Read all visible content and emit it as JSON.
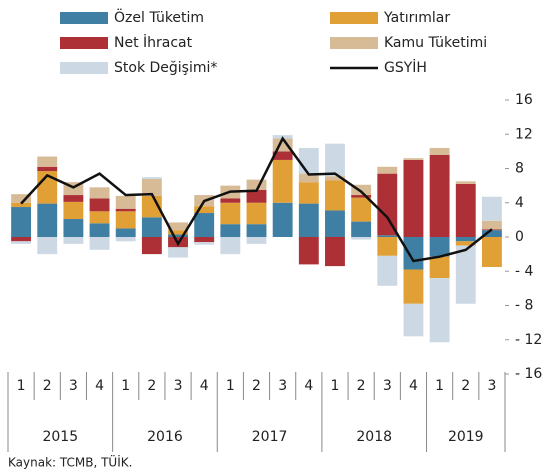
{
  "chart_data": {
    "type": "bar",
    "categories": [
      "1",
      "2",
      "3",
      "4",
      "1",
      "2",
      "3",
      "4",
      "1",
      "2",
      "3",
      "4",
      "1",
      "2",
      "3",
      "4",
      "1",
      "2",
      "3"
    ],
    "years": [
      "2015",
      "2016",
      "2017",
      "2018",
      "2019"
    ],
    "series": [
      {
        "name": "Özel Tüketim",
        "color": "#3f7fa3",
        "values": [
          3.5,
          3.9,
          2.1,
          1.6,
          1.0,
          2.3,
          0.3,
          2.8,
          1.5,
          1.5,
          4.0,
          3.9,
          3.1,
          1.8,
          0.2,
          -3.8,
          -2.3,
          -0.5,
          0.8
        ]
      },
      {
        "name": "Yatırımlar",
        "color": "#e0a035",
        "values": [
          0.5,
          3.8,
          2.0,
          1.4,
          2.0,
          2.5,
          0.5,
          0.8,
          2.5,
          2.5,
          5.0,
          2.5,
          3.5,
          2.8,
          -2.2,
          -4.0,
          -2.5,
          -0.5,
          -3.5
        ]
      },
      {
        "name": "Net İhracat",
        "color": "#ad3036",
        "values": [
          -0.5,
          0.5,
          0.8,
          1.5,
          0.3,
          -2.0,
          -1.2,
          -0.6,
          0.5,
          1.5,
          1.0,
          -3.2,
          -3.4,
          0.3,
          7.2,
          9.0,
          9.6,
          6.2,
          0.1
        ]
      },
      {
        "name": "Kamu Tüketimi",
        "color": "#d6bb96",
        "values": [
          1.0,
          1.2,
          1.5,
          1.3,
          1.5,
          2.0,
          0.9,
          1.3,
          1.5,
          1.2,
          1.5,
          1.0,
          0.5,
          1.2,
          0.8,
          0.2,
          0.8,
          0.3,
          1.0
        ]
      },
      {
        "name": "Stok Değişimi*",
        "color": "#ccd9e5",
        "values": [
          -0.3,
          -2.0,
          -0.8,
          -1.5,
          -0.5,
          0.2,
          -1.2,
          -0.3,
          -2.0,
          -0.8,
          0.4,
          3.0,
          3.8,
          -0.3,
          -3.5,
          -3.8,
          -7.5,
          -6.8,
          2.8
        ]
      },
      {
        "name": "GSYİH",
        "color": "#111111",
        "type": "line",
        "values": [
          3.9,
          7.2,
          5.8,
          7.4,
          4.9,
          5.0,
          -0.8,
          4.2,
          5.3,
          5.4,
          11.5,
          7.3,
          7.4,
          5.3,
          2.3,
          -2.8,
          -2.3,
          -1.5,
          0.9
        ]
      }
    ],
    "ylim": [
      -16,
      16
    ],
    "yticks": [
      16,
      12,
      8,
      4,
      0,
      {
        "value": -4,
        "label": "- 4"
      },
      {
        "value": -8,
        "label": "- 8"
      },
      {
        "value": -12,
        "label": "- 12"
      },
      {
        "value": -16,
        "label": "- 16"
      }
    ],
    "source": "Kaynak: TCMB, TÜİK."
  }
}
